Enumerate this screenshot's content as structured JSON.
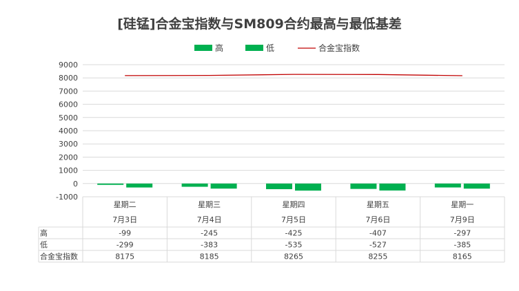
{
  "chart_data": {
    "type": "bar",
    "title": "[硅锰]合金宝指数与SM809合约最高与最低基差",
    "categories": [
      {
        "weekday": "星期二",
        "date": "7月3日"
      },
      {
        "weekday": "星期三",
        "date": "7月4日"
      },
      {
        "weekday": "星期四",
        "date": "7月5日"
      },
      {
        "weekday": "星期五",
        "date": "7月6日"
      },
      {
        "weekday": "星期一",
        "date": "7月9日"
      }
    ],
    "series": [
      {
        "name": "高",
        "type": "bar",
        "color": "#00b050",
        "values": [
          -99,
          -245,
          -425,
          -407,
          -297
        ]
      },
      {
        "name": "低",
        "type": "bar",
        "color": "#00b050",
        "values": [
          -299,
          -383,
          -535,
          -527,
          -385
        ]
      },
      {
        "name": "合金宝指数",
        "type": "line",
        "color": "#c00000",
        "values": [
          8175,
          8185,
          8265,
          8255,
          8165
        ]
      }
    ],
    "yticks": [
      "9000",
      "8000",
      "7000",
      "6000",
      "5000",
      "4000",
      "3000",
      "2000",
      "1000",
      "0",
      "-1000"
    ],
    "ylim": [
      -1000,
      9000
    ],
    "grid": true,
    "legend": "top"
  }
}
